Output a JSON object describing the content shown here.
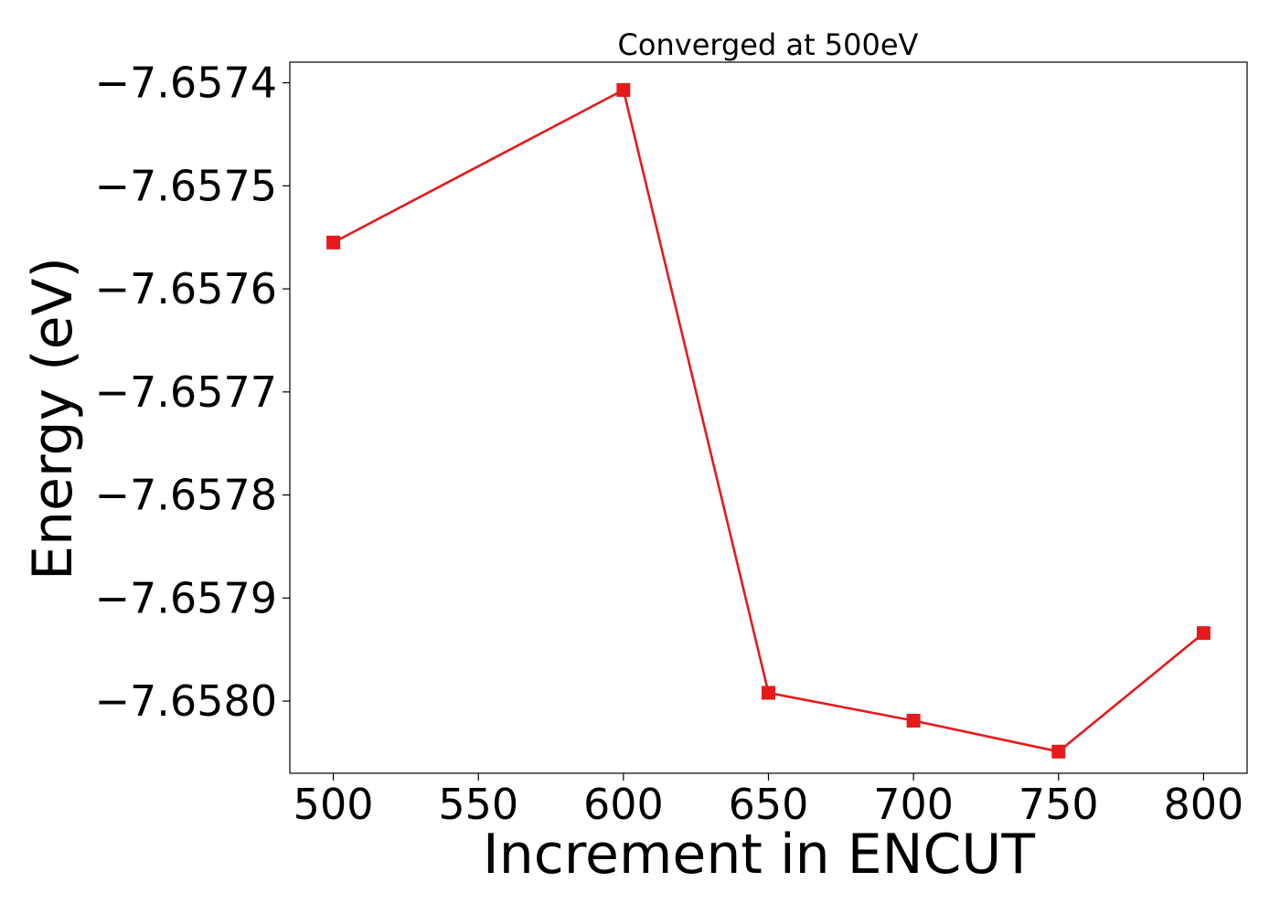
{
  "chart_data": {
    "type": "line",
    "title": "Converged at 500eV",
    "xlabel": "Increment in ENCUT",
    "ylabel": "Energy (eV)",
    "x": [
      500,
      600,
      650,
      700,
      750,
      800
    ],
    "xticks": [
      500,
      550,
      600,
      650,
      700,
      750,
      800
    ],
    "xtick_labels": [
      "500",
      "550",
      "600",
      "650",
      "700",
      "750",
      "800"
    ],
    "yticks": [
      -7.6574,
      -7.6575,
      -7.6576,
      -7.6577,
      -7.6578,
      -7.6579,
      -7.658
    ],
    "ytick_labels": [
      "−7.6574",
      "−7.6575",
      "−7.6576",
      "−7.6577",
      "−7.6578",
      "−7.6579",
      "−7.6580"
    ],
    "xlim": [
      485,
      815
    ],
    "ylim": [
      -7.65807,
      -7.65738
    ],
    "grid": false,
    "series": [
      {
        "values": [
          -7.657555,
          -7.657407,
          -7.657992,
          -7.658019,
          -7.658049,
          -7.657934
        ],
        "color": "#e41a1c",
        "marker": "square"
      }
    ]
  }
}
